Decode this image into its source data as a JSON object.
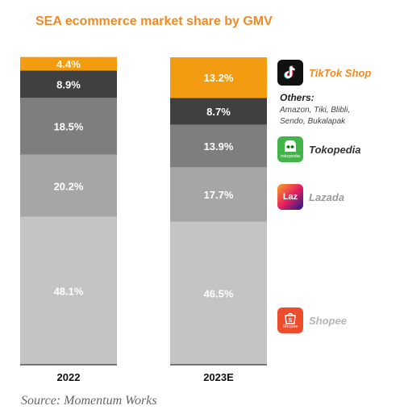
{
  "chart_data": {
    "type": "bar",
    "title": "SEA ecommerce market share by GMV",
    "categories": [
      "2022",
      "2023E"
    ],
    "stacked": true,
    "ylim": [
      0,
      100
    ],
    "series": [
      {
        "name": "Shopee",
        "values": [
          48.1,
          46.5
        ],
        "labels": [
          "48.1%",
          "46.5%"
        ],
        "color": "#c4c4c4"
      },
      {
        "name": "Lazada",
        "values": [
          20.2,
          17.7
        ],
        "labels": [
          "20.2%",
          "17.7%"
        ],
        "color": "#a6a6a6"
      },
      {
        "name": "Tokopedia",
        "values": [
          18.5,
          13.9
        ],
        "labels": [
          "18.5%",
          "13.9%"
        ],
        "color": "#7e7e7e"
      },
      {
        "name": "Others:",
        "values": [
          8.9,
          8.7
        ],
        "labels": [
          "8.9%",
          "8.7%"
        ],
        "color": "#404040"
      },
      {
        "name": "TikTok Shop",
        "values": [
          4.4,
          13.2
        ],
        "labels": [
          "4.4%",
          "13.2%"
        ],
        "color": "#f39c12"
      }
    ],
    "legend_placement": "right",
    "grid": false
  },
  "legend": {
    "tiktok": {
      "name": "TikTok Shop",
      "icon": "tiktok-logo-icon",
      "color": "#f08a24",
      "logo_bg": "#111111"
    },
    "others": {
      "title": "Others:",
      "desc": "Amazon, Tiki, Blibli, Sendo, Bukalapak"
    },
    "tokopedia": {
      "name": "Tokopedia",
      "icon": "tokopedia-logo-icon",
      "color": "#333333",
      "logo_bg": "#42b549",
      "logo_text": "tokopedia"
    },
    "lazada": {
      "name": "Lazada",
      "icon": "lazada-logo-icon",
      "color": "#9a9a9a",
      "logo_bg": "#1a1a8a",
      "logo_text": "Laz"
    },
    "shopee": {
      "name": "Shopee",
      "icon": "shopee-logo-icon",
      "color": "#b5b5b5",
      "logo_bg": "#ee4d2d",
      "logo_text": "Shopee"
    }
  },
  "source": "Source: Momentum Works"
}
